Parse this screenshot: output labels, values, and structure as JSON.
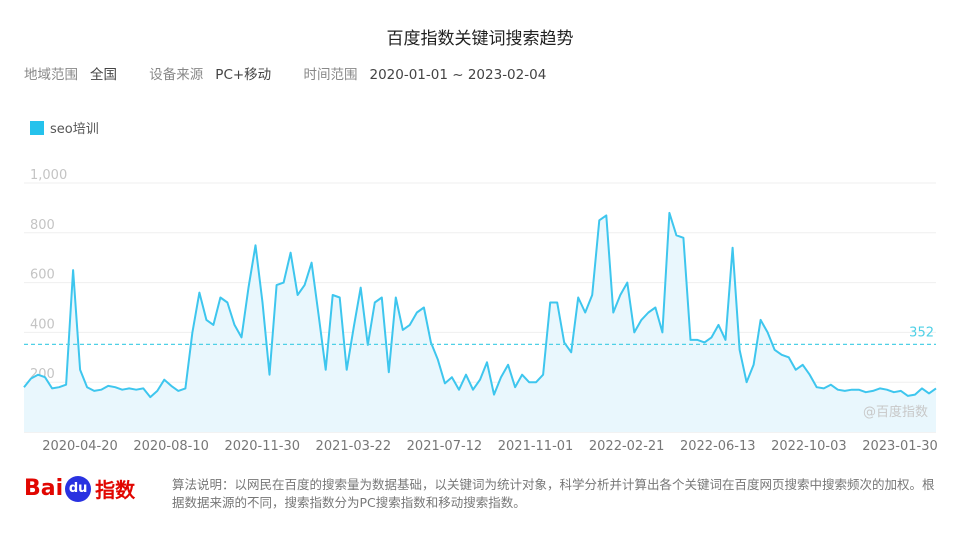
{
  "title": "百度指数关键词搜索趋势",
  "filters": [
    {
      "label": "地域范围",
      "value": "全国"
    },
    {
      "label": "设备来源",
      "value": "PC+移动"
    },
    {
      "label": "时间范围",
      "value": "2020-01-01 ~ 2023-02-04"
    }
  ],
  "watermark": "@百度指数",
  "logo": {
    "bai": "Bai",
    "du": "du",
    "zhishu": "指数"
  },
  "note": "算法说明：以网民在百度的搜索量为数据基础，以关键词为统计对象，科学分析并计算出各个关键词在百度网页搜索中搜索频次的加权。根据数据来源的不同，搜索指数分为PC搜索指数和移动搜索指数。",
  "colors": {
    "line": "#3ec6ee",
    "fill": "#e9f7fd",
    "legend": "#25c2ec",
    "ref": "#4fd0e6"
  },
  "chart_data": {
    "type": "area",
    "ylim": [
      0,
      1000
    ],
    "yticks": [
      "200",
      "400",
      "600",
      "800",
      "1,000"
    ],
    "xticks": [
      "2020-04-20",
      "2020-08-10",
      "2020-11-30",
      "2021-03-22",
      "2021-07-12",
      "2021-11-01",
      "2022-02-21",
      "2022-06-13",
      "2022-10-03",
      "2023-01-30"
    ],
    "reference": {
      "value": 352,
      "label": "352"
    },
    "series": [
      {
        "name": "seo培训",
        "values": [
          180,
          215,
          230,
          220,
          175,
          180,
          190,
          650,
          250,
          180,
          165,
          170,
          185,
          180,
          170,
          175,
          170,
          175,
          140,
          165,
          210,
          185,
          165,
          175,
          400,
          560,
          450,
          430,
          540,
          520,
          430,
          380,
          580,
          750,
          520,
          230,
          590,
          600,
          720,
          550,
          590,
          680,
          470,
          250,
          550,
          540,
          250,
          420,
          580,
          350,
          520,
          540,
          240,
          540,
          410,
          430,
          480,
          500,
          360,
          290,
          195,
          220,
          170,
          230,
          170,
          210,
          280,
          150,
          220,
          270,
          180,
          230,
          200,
          200,
          230,
          520,
          520,
          360,
          320,
          540,
          480,
          550,
          850,
          870,
          480,
          550,
          600,
          400,
          450,
          480,
          500,
          400,
          880,
          790,
          780,
          370,
          370,
          360,
          380,
          430,
          370,
          740,
          330,
          200,
          270,
          450,
          400,
          330,
          310,
          300,
          250,
          270,
          230,
          180,
          175,
          190,
          170,
          165,
          170,
          170,
          160,
          165,
          175,
          170,
          160,
          165,
          145,
          150,
          175,
          155,
          175
        ]
      }
    ]
  }
}
